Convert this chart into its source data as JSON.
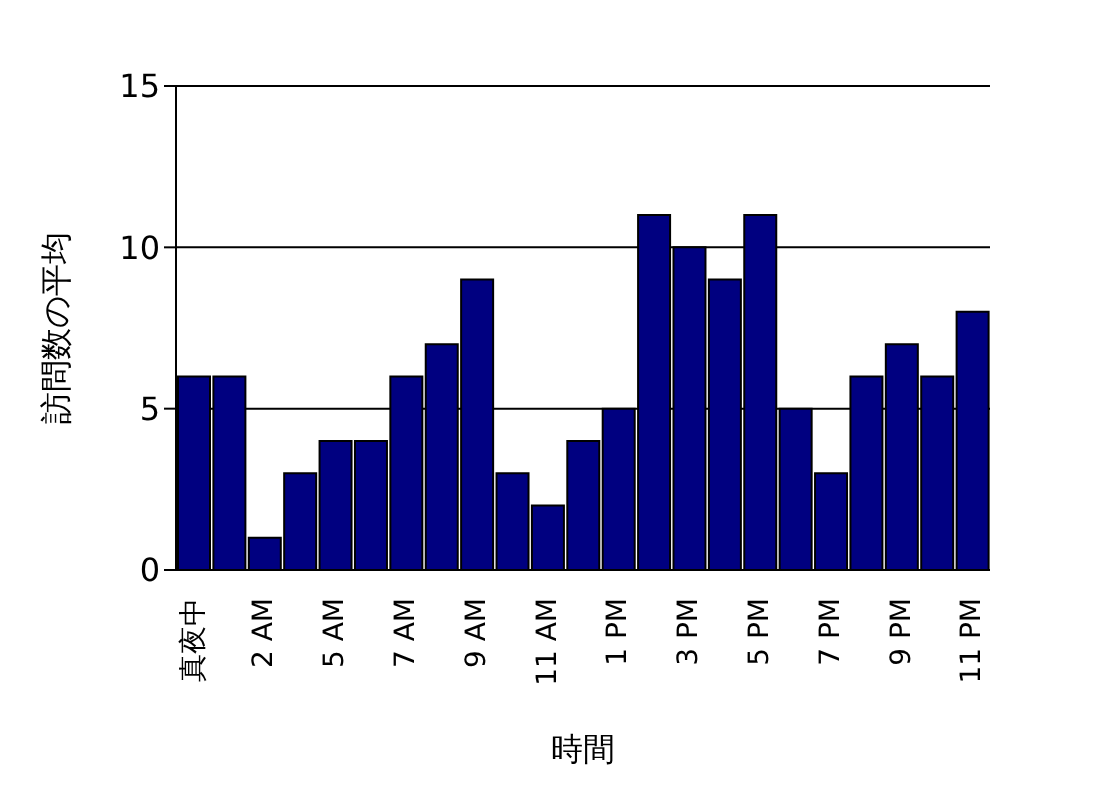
{
  "chart_data": {
    "type": "bar",
    "xlabel": "時間",
    "ylabel": "訪問数の平均",
    "categories": [
      "真夜中",
      null,
      "2 AM",
      null,
      "5 AM",
      null,
      "7 AM",
      null,
      "9 AM",
      null,
      "11 AM",
      null,
      "1 PM",
      null,
      "3 PM",
      null,
      "5 PM",
      null,
      "7 PM",
      null,
      "9 PM",
      null,
      "11 PM"
    ],
    "values": [
      6,
      6,
      1,
      3,
      4,
      4,
      6,
      7,
      9,
      3,
      2,
      4,
      5,
      11,
      10,
      9,
      11,
      5,
      3,
      6,
      7,
      6,
      8
    ],
    "color": "#000080",
    "ylim": [
      0,
      15
    ],
    "yticks": [
      0,
      5,
      10,
      15
    ],
    "grid": "y"
  }
}
